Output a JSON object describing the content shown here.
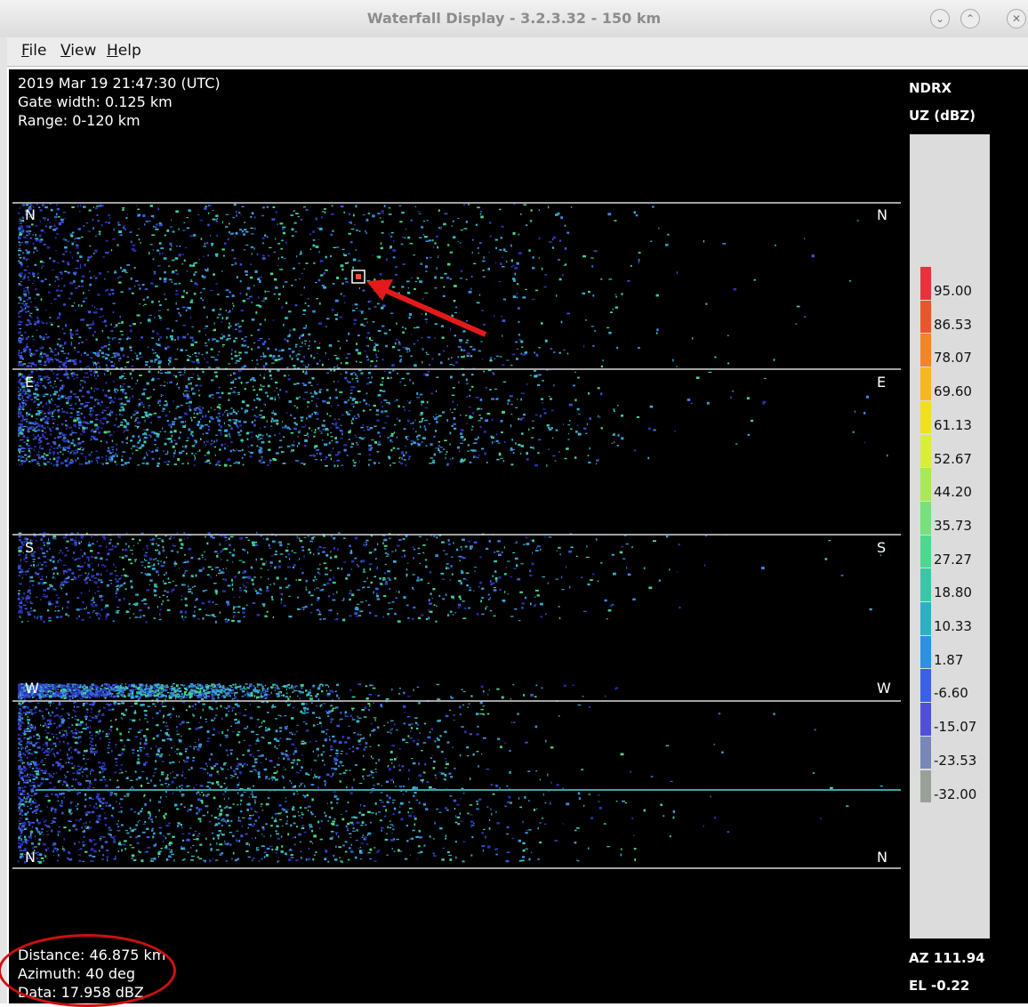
{
  "window": {
    "title": "Waterfall Display - 3.2.3.32 - 150 km"
  },
  "menu": [
    {
      "label": "File",
      "underline": "F",
      "rest": "ile"
    },
    {
      "label": "View",
      "underline": "V",
      "rest": "iew"
    },
    {
      "label": "Help",
      "underline": "H",
      "rest": "elp"
    }
  ],
  "header_info": {
    "timestamp": "2019 Mar 19 21:47:30 (UTC)",
    "gate_width": "Gate width: 0.125 km",
    "range": "Range: 0-120 km"
  },
  "legend": {
    "station": "NDRX",
    "field": "UZ (dBZ)",
    "bins": [
      {
        "label": "95.00",
        "color": "#e8323c"
      },
      {
        "label": "86.53",
        "color": "#e8562e"
      },
      {
        "label": "78.07",
        "color": "#f0862a"
      },
      {
        "label": "69.60",
        "color": "#f5b820"
      },
      {
        "label": "61.13",
        "color": "#f0e020"
      },
      {
        "label": "52.67",
        "color": "#d8ee3a"
      },
      {
        "label": "44.20",
        "color": "#a8e85a"
      },
      {
        "label": "35.73",
        "color": "#78e07c"
      },
      {
        "label": "27.27",
        "color": "#50d690"
      },
      {
        "label": "18.80",
        "color": "#3cc6a8"
      },
      {
        "label": "10.33",
        "color": "#30aec4"
      },
      {
        "label": "1.87",
        "color": "#3090e0"
      },
      {
        "label": "-6.60",
        "color": "#3a60e6"
      },
      {
        "label": "-15.07",
        "color": "#5050d4"
      },
      {
        "label": "-23.53",
        "color": "#7a86b8"
      },
      {
        "label": "-32.00",
        "color": "#98a098"
      }
    ]
  },
  "compass": {
    "left": [
      "N",
      "E",
      "S",
      "W",
      "N"
    ],
    "right": [
      "N",
      "E",
      "S",
      "W",
      "N"
    ]
  },
  "cursor_info": {
    "distance": "Distance: 46.875 km",
    "azimuth": "Azimuth: 40 deg",
    "data": "Data: 17.958 dBZ"
  },
  "antenna": {
    "az": "AZ 111.94",
    "el": "EL -0.22"
  }
}
